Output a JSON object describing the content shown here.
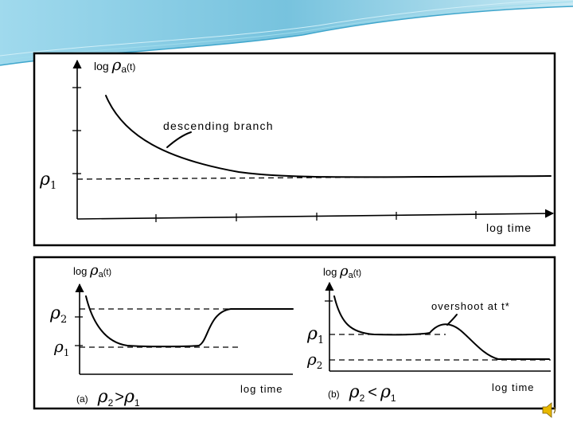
{
  "top": {
    "y_label_prefix": "log ",
    "y_label_symbol": "ρ",
    "y_label_sub": "a",
    "y_label_suffix": "(t)",
    "x_label": "log time",
    "level_symbol": "ρ",
    "level_sub": "1",
    "annotation": "descending branch"
  },
  "panel_a": {
    "y_label_prefix": "log ",
    "y_label_symbol": "ρ",
    "y_label_sub": "a",
    "y_label_suffix": "(t)",
    "x_label": "log time",
    "upper_symbol": "ρ",
    "upper_sub": "2",
    "lower_symbol": "ρ",
    "lower_sub": "1",
    "caption_tag": "(a)",
    "caption_left_symbol": "ρ",
    "caption_left_sub": "2",
    "caption_op": ">",
    "caption_right_symbol": "ρ",
    "caption_right_sub": "1"
  },
  "panel_b": {
    "y_label_prefix": "log ",
    "y_label_symbol": "ρ",
    "y_label_sub": "a",
    "y_label_suffix": "(t)",
    "x_label": "log time",
    "upper_symbol": "ρ",
    "upper_sub": "1",
    "lower_symbol": "ρ",
    "lower_sub": "2",
    "annotation": "overshoot at t*",
    "caption_tag": "(b)",
    "caption_left_symbol": "ρ",
    "caption_left_sub": "2",
    "caption_op": "<",
    "caption_right_symbol": "ρ",
    "caption_right_sub": "1"
  },
  "decor": {
    "wave_color": "#5fb8d8",
    "wave_light": "#bfe6f2",
    "speaker_icon": "speaker-icon"
  }
}
